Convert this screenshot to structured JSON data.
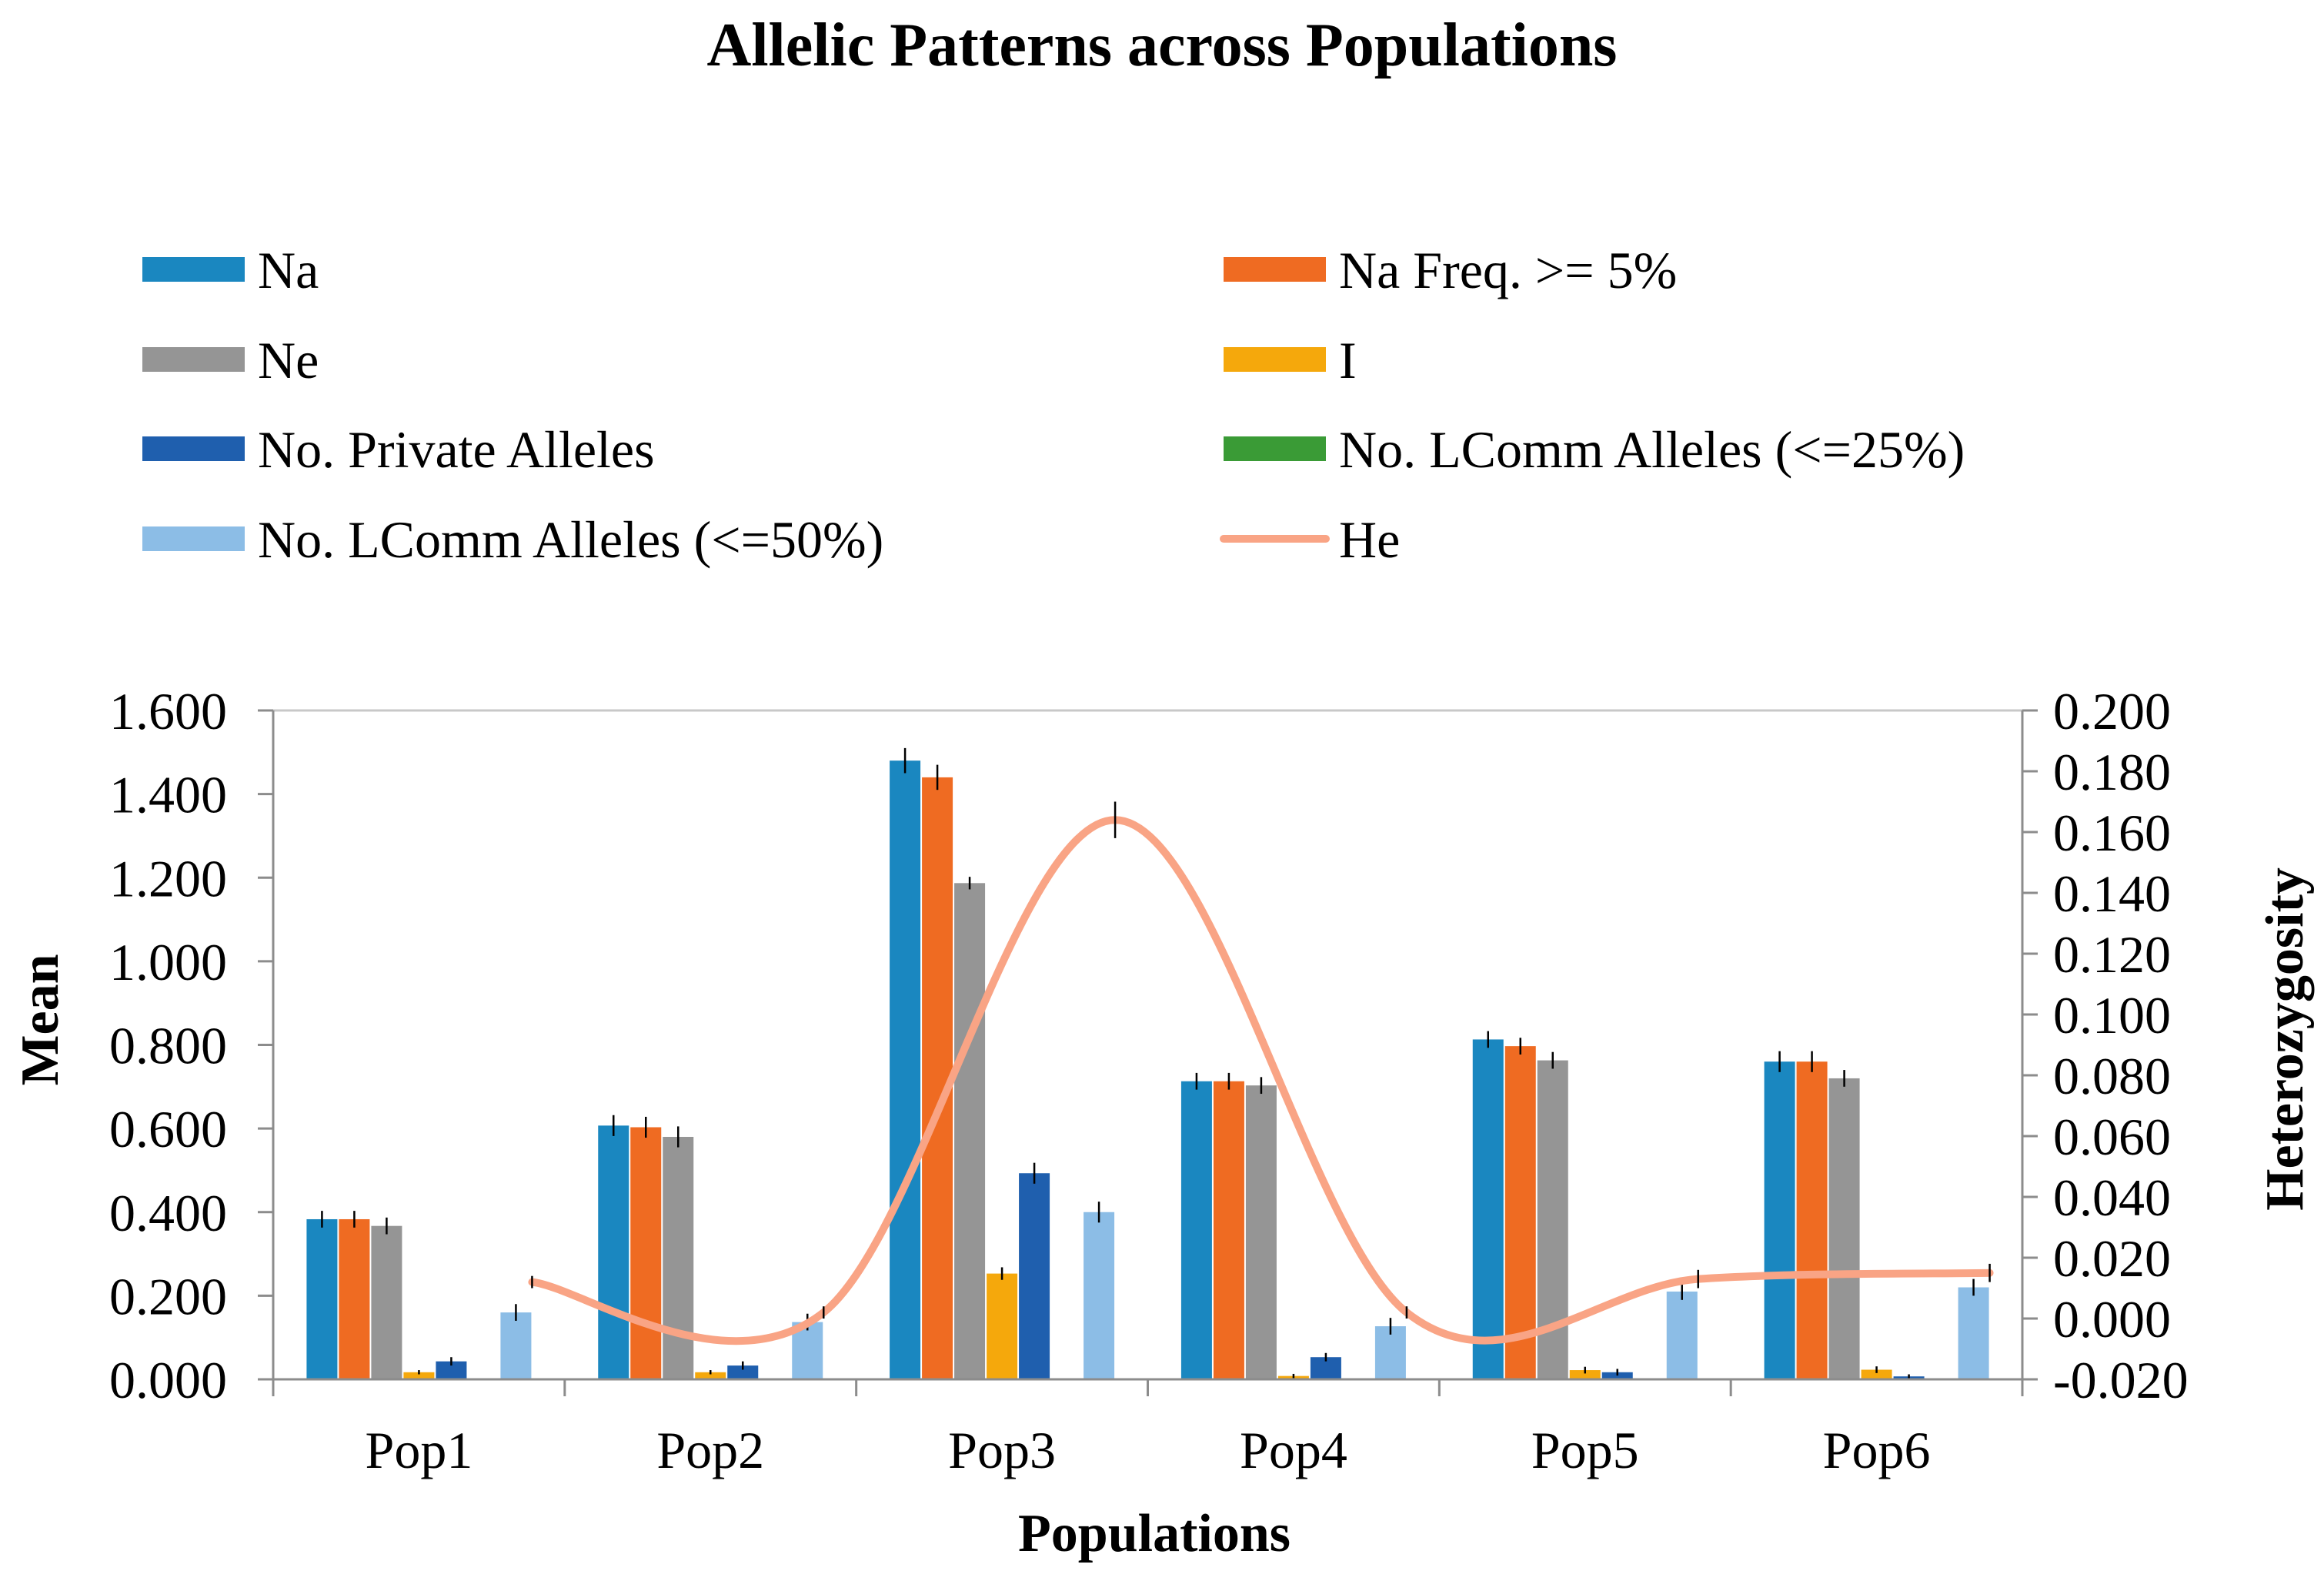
{
  "chart_data": {
    "type": "bar",
    "title": "Allelic Patterns across Populations",
    "xlabel": "Populations",
    "ylabel": "Mean",
    "y2label": "Heterozygosity",
    "ylim": [
      0,
      1.6
    ],
    "y2lim": [
      -0.02,
      0.2
    ],
    "yticks": [
      "0.000",
      "0.200",
      "0.400",
      "0.600",
      "0.800",
      "1.000",
      "1.200",
      "1.400",
      "1.600"
    ],
    "y2ticks": [
      "-0.020",
      "0.000",
      "0.020",
      "0.040",
      "0.060",
      "0.080",
      "0.100",
      "0.120",
      "0.140",
      "0.160",
      "0.180",
      "0.200"
    ],
    "categories": [
      "Pop1",
      "Pop2",
      "Pop3",
      "Pop4",
      "Pop5",
      "Pop6"
    ],
    "series": [
      {
        "name": "Na",
        "color": "#1a87c0",
        "values": [
          0.383,
          0.607,
          1.48,
          0.713,
          0.813,
          0.76
        ],
        "errors": [
          0.02,
          0.025,
          0.03,
          0.02,
          0.02,
          0.025
        ]
      },
      {
        "name": "Na Freq. >= 5%",
        "color": "#ef6b22",
        "values": [
          0.383,
          0.603,
          1.44,
          0.713,
          0.797,
          0.76
        ],
        "errors": [
          0.02,
          0.025,
          0.03,
          0.02,
          0.02,
          0.025
        ]
      },
      {
        "name": "Ne",
        "color": "#959595",
        "values": [
          0.367,
          0.58,
          1.187,
          0.703,
          0.763,
          0.72
        ],
        "errors": [
          0.02,
          0.025,
          0.015,
          0.02,
          0.02,
          0.02
        ]
      },
      {
        "name": "I",
        "color": "#f5a80c",
        "values": [
          0.017,
          0.017,
          0.253,
          0.008,
          0.022,
          0.023
        ],
        "errors": [
          0.005,
          0.005,
          0.015,
          0.005,
          0.008,
          0.008
        ]
      },
      {
        "name": "No. Private Alleles",
        "color": "#1f5fae",
        "values": [
          0.043,
          0.033,
          0.493,
          0.053,
          0.017,
          0.007
        ],
        "errors": [
          0.01,
          0.01,
          0.025,
          0.01,
          0.008,
          0.005
        ]
      },
      {
        "name": "No. LComm Alleles (<=25%)",
        "color": "#3a9b36",
        "values": [
          0,
          0,
          0,
          0,
          0,
          0
        ],
        "errors": [
          0,
          0,
          0,
          0,
          0,
          0
        ]
      },
      {
        "name": "No. LComm Alleles (<=50%)",
        "color": "#8cbde6",
        "values": [
          0.16,
          0.137,
          0.4,
          0.127,
          0.21,
          0.22
        ],
        "errors": [
          0.02,
          0.02,
          0.025,
          0.02,
          0.02,
          0.02
        ]
      }
    ],
    "line_series": {
      "name": "He",
      "color": "#f9a485",
      "axis": "y2",
      "values": [
        0.012,
        0.002,
        0.164,
        0.002,
        0.013,
        0.015
      ],
      "errors": [
        0.002,
        0.002,
        0.006,
        0.002,
        0.003,
        0.003
      ]
    }
  }
}
